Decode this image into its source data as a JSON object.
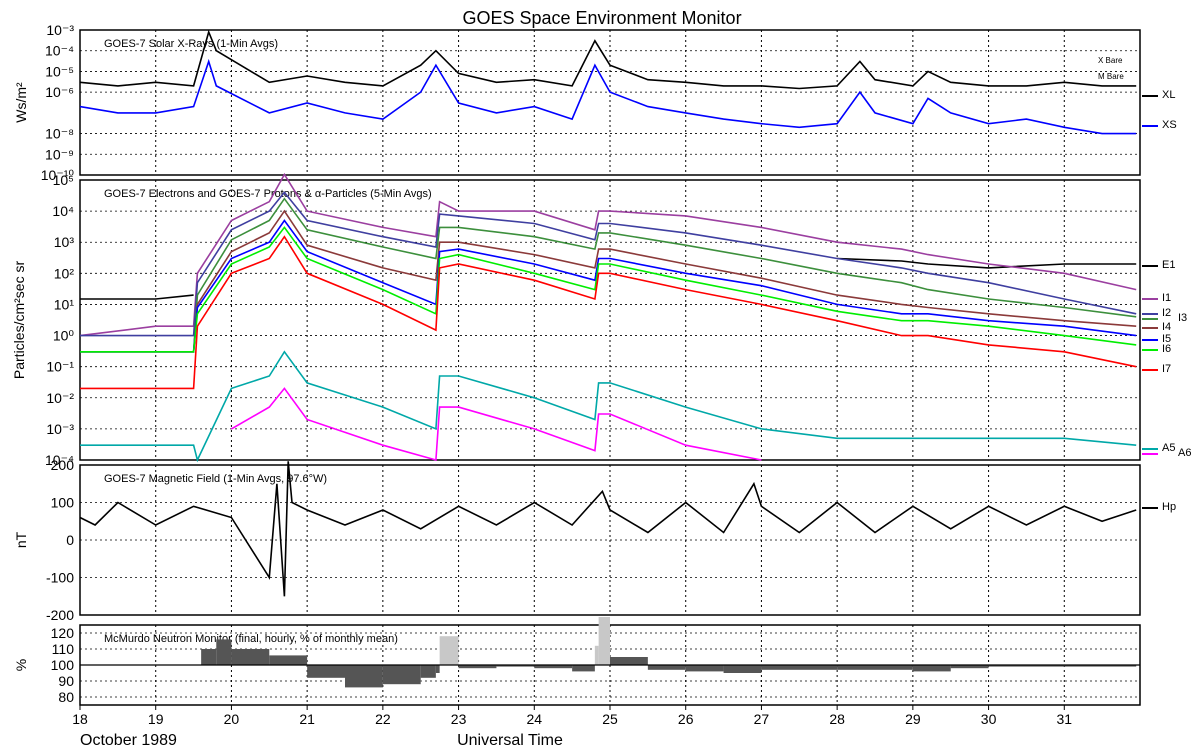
{
  "title": "GOES Space Environment Monitor",
  "footer": {
    "date_label": "October 1989",
    "xlabel": "Universal Time"
  },
  "x_axis": {
    "range": [
      18,
      32
    ],
    "ticks": [
      "18",
      "19",
      "20",
      "21",
      "22",
      "23",
      "24",
      "25",
      "26",
      "27",
      "28",
      "29",
      "30",
      "31"
    ]
  },
  "colors": {
    "XL": "#000000",
    "XS": "#0000ff",
    "E1": "#000000",
    "I1": "#9b3fa0",
    "I2": "#3f3fa0",
    "I3": "#3c8f3c",
    "I4": "#8b3a3a",
    "I5": "#0000ff",
    "I6": "#00ee00",
    "I7": "#ff0000",
    "A5": "#00a8a8",
    "A6": "#ff00ff",
    "Hp": "#000000",
    "neutron": "#555555",
    "neutron_light": "#c8c8c8"
  },
  "chart_data": [
    {
      "type": "line",
      "title": "GOES-7 Solar X-Rays (1-Min Avgs)",
      "ylabel": "Ws/m²",
      "yscale": "log",
      "ylim": [
        1e-10,
        0.001
      ],
      "yticks": [
        "10⁻³",
        "10⁻⁴",
        "10⁻⁵",
        "10⁻⁶",
        "10⁻⁸",
        "10⁻⁹",
        "10⁻¹⁰"
      ],
      "side_labels": [
        "X Bare",
        "M Bare"
      ],
      "x": [
        18.0,
        18.5,
        19.0,
        19.5,
        19.7,
        19.8,
        20.5,
        21.0,
        21.5,
        22.0,
        22.5,
        22.7,
        23.0,
        23.5,
        24.0,
        24.5,
        24.8,
        25.0,
        25.5,
        26.0,
        26.5,
        27.0,
        27.5,
        28.0,
        28.3,
        28.5,
        29.0,
        29.2,
        29.5,
        30.0,
        30.5,
        31.0,
        31.5,
        31.95
      ],
      "series": [
        {
          "name": "XL",
          "values": [
            3e-06,
            2e-06,
            3e-06,
            2e-06,
            0.0008,
            0.0001,
            3e-06,
            6e-06,
            3e-06,
            2e-06,
            2e-05,
            0.0001,
            8e-06,
            3e-06,
            4e-06,
            2e-06,
            0.0003,
            2e-05,
            4e-06,
            3e-06,
            2e-06,
            2e-06,
            1.5e-06,
            2e-06,
            3e-05,
            4e-06,
            2e-06,
            1e-05,
            3e-06,
            2e-06,
            2e-06,
            3e-06,
            2e-06,
            2e-06
          ]
        },
        {
          "name": "XS",
          "values": [
            2e-07,
            1e-07,
            1e-07,
            2e-07,
            3e-05,
            2e-06,
            1e-07,
            3e-07,
            1e-07,
            5e-08,
            1e-06,
            2e-05,
            3e-07,
            1e-07,
            2e-07,
            5e-08,
            2e-05,
            1e-06,
            2e-07,
            1e-07,
            5e-08,
            3e-08,
            2e-08,
            3e-08,
            1e-06,
            1e-07,
            3e-08,
            5e-07,
            1e-07,
            3e-08,
            5e-08,
            2e-08,
            1e-08,
            1e-08
          ]
        }
      ]
    },
    {
      "type": "line",
      "title": "GOES-7 Electrons and GOES-7 Protons & α-Particles (5-Min Avgs)",
      "ylabel": "Particles/cm²sec sr",
      "yscale": "log",
      "ylim": [
        0.0001,
        100000.0
      ],
      "yticks": [
        "10⁵",
        "10⁴",
        "10³",
        "10²",
        "10¹",
        "10⁰",
        "10⁻¹",
        "10⁻²",
        "10⁻³",
        "10⁻⁴"
      ],
      "x": [
        18.0,
        19.0,
        19.5,
        19.55,
        20.0,
        20.5,
        20.7,
        21.0,
        22.0,
        22.7,
        22.75,
        23.0,
        24.0,
        24.8,
        24.85,
        25.0,
        26.0,
        27.0,
        28.0,
        28.85,
        29.2,
        30.0,
        31.0,
        31.95
      ],
      "series": [
        {
          "name": "E1",
          "values": [
            15,
            15,
            20,
            null,
            null,
            null,
            null,
            null,
            null,
            null,
            null,
            null,
            null,
            null,
            null,
            null,
            null,
            null,
            300,
            250,
            200,
            150,
            200,
            200
          ]
        },
        {
          "name": "I1",
          "values": [
            1,
            2,
            2,
            100,
            5000,
            20000,
            150000,
            10000,
            3000,
            1500,
            20000,
            10000,
            10000,
            2500,
            10000,
            10000,
            7000,
            3000,
            1000,
            600,
            400,
            200,
            100,
            30
          ]
        },
        {
          "name": "I2",
          "values": [
            1,
            1,
            1,
            50,
            2500,
            10000,
            40000,
            5000,
            1500,
            700,
            8000,
            7000,
            4000,
            1200,
            4000,
            4000,
            2000,
            800,
            300,
            150,
            100,
            50,
            15,
            5
          ]
        },
        {
          "name": "I3",
          "values": [
            0.3,
            0.3,
            0.3,
            20,
            1200,
            5000,
            25000,
            2500,
            700,
            300,
            3000,
            3000,
            1500,
            600,
            2000,
            2000,
            800,
            300,
            100,
            50,
            30,
            15,
            8,
            4
          ]
        },
        {
          "name": "I4",
          "values": [
            0.3,
            0.3,
            0.3,
            10,
            500,
            2000,
            10000,
            800,
            150,
            60,
            1000,
            1000,
            400,
            150,
            600,
            600,
            200,
            70,
            20,
            10,
            8,
            5,
            3,
            2
          ]
        },
        {
          "name": "I5",
          "values": [
            0.3,
            0.3,
            0.3,
            8,
            300,
            1000,
            5000,
            500,
            50,
            10,
            500,
            600,
            200,
            60,
            300,
            300,
            100,
            40,
            10,
            5,
            5,
            3,
            2,
            1
          ]
        },
        {
          "name": "I6",
          "values": [
            0.3,
            0.3,
            0.3,
            5,
            200,
            700,
            3000,
            300,
            30,
            5,
            300,
            400,
            100,
            30,
            200,
            200,
            60,
            20,
            6,
            3,
            3,
            2,
            1,
            0.5
          ]
        },
        {
          "name": "I7",
          "values": [
            0.02,
            0.02,
            0.02,
            2,
            100,
            300,
            1500,
            100,
            10,
            1.5,
            150,
            200,
            60,
            15,
            100,
            100,
            30,
            10,
            3,
            1,
            1,
            0.5,
            0.3,
            0.1
          ]
        },
        {
          "name": "A5",
          "values": [
            0.0003,
            0.0003,
            0.0003,
            0.0001,
            0.02,
            0.05,
            0.3,
            0.03,
            0.005,
            0.001,
            0.05,
            0.05,
            0.01,
            0.002,
            0.03,
            0.03,
            0.005,
            0.001,
            0.0005,
            0.0005,
            0.0005,
            0.0005,
            0.0005,
            0.0003
          ]
        },
        {
          "name": "A6",
          "values": [
            null,
            null,
            null,
            null,
            0.001,
            0.005,
            0.02,
            0.002,
            0.0003,
            0.0001,
            0.005,
            0.005,
            0.001,
            0.0002,
            0.003,
            0.003,
            0.0003,
            0.0001,
            null,
            null,
            null,
            null,
            null,
            null
          ]
        }
      ]
    },
    {
      "type": "line",
      "title": "GOES-7 Magnetic Field (1-Min Avgs, 97.6°W)",
      "ylabel": "nT",
      "ylim": [
        -200,
        200
      ],
      "yticks": [
        "200",
        "100",
        "0",
        "-100",
        "-200"
      ],
      "x": [
        18.0,
        18.2,
        18.5,
        19.0,
        19.5,
        20.0,
        20.5,
        20.6,
        20.7,
        20.75,
        20.8,
        21.0,
        21.5,
        22.0,
        22.5,
        23.0,
        23.5,
        24.0,
        24.5,
        24.9,
        25.0,
        25.5,
        26.0,
        26.5,
        26.9,
        27.0,
        27.5,
        28.0,
        28.5,
        29.0,
        29.5,
        30.0,
        30.5,
        31.0,
        31.5,
        31.95
      ],
      "series": [
        {
          "name": "Hp",
          "values": [
            60,
            40,
            100,
            40,
            90,
            60,
            -100,
            150,
            -150,
            210,
            100,
            80,
            40,
            80,
            30,
            90,
            40,
            100,
            40,
            130,
            80,
            20,
            100,
            20,
            150,
            90,
            20,
            100,
            20,
            90,
            30,
            90,
            40,
            90,
            50,
            80
          ]
        }
      ]
    },
    {
      "type": "area",
      "title": "McMurdo Neutron Monitor (final, hourly, % of monthly mean)",
      "ylabel": "%",
      "ylim": [
        75,
        125
      ],
      "yticks": [
        "120",
        "110",
        "100",
        "90",
        "80"
      ],
      "baseline": 100,
      "x": [
        18.0,
        19.0,
        19.5,
        19.6,
        19.8,
        20.0,
        20.5,
        21.0,
        21.5,
        22.0,
        22.5,
        22.7,
        22.75,
        23.0,
        23.5,
        24.0,
        24.5,
        24.8,
        24.85,
        25.0,
        25.5,
        26.0,
        26.5,
        27.0,
        28.0,
        29.0,
        29.5,
        30.0,
        31.0,
        31.95
      ],
      "series": [
        {
          "name": "neutron",
          "values": [
            100,
            100,
            100,
            110,
            116,
            110,
            106,
            92,
            86,
            88,
            92,
            95,
            118,
            98,
            99,
            98,
            96,
            112,
            130,
            105,
            97,
            96,
            95,
            97,
            97,
            96,
            98,
            99,
            99,
            99
          ]
        }
      ]
    }
  ],
  "right_labels": {
    "panel1": [
      "XL",
      "XS"
    ],
    "panel2": [
      "E1",
      "I1",
      "I2",
      "I3",
      "I4",
      "I5",
      "I6",
      "I7",
      "A5",
      "A6"
    ],
    "panel3": [
      "Hp"
    ]
  }
}
